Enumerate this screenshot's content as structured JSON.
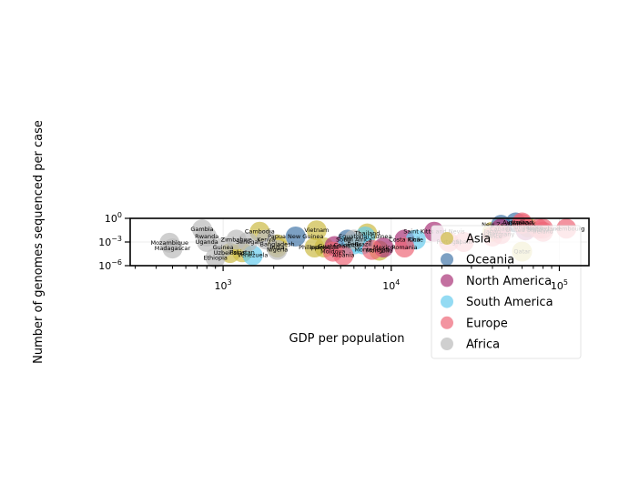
{
  "chart_data": {
    "type": "scatter",
    "title": "",
    "xlabel": "GDP per population",
    "ylabel": "Number of genomes sequenced per case",
    "xscale": "log",
    "yscale": "log",
    "xlim": [
      280,
      150000
    ],
    "ylim": [
      1e-06,
      1
    ],
    "xticks": [
      {
        "value": 1000,
        "base": "10",
        "exp": "3"
      },
      {
        "value": 10000,
        "base": "10",
        "exp": "4"
      },
      {
        "value": 100000,
        "base": "10",
        "exp": "5"
      }
    ],
    "yticks": [
      {
        "value": 1e-06,
        "base": "10",
        "exp": "−6"
      },
      {
        "value": 0.001,
        "base": "10",
        "exp": "−3"
      },
      {
        "value": 1,
        "base": "10",
        "exp": "0"
      }
    ],
    "grid": true,
    "legend_position": "right",
    "series": [
      {
        "name": "Asia",
        "color": "#ccbb44",
        "points": [
          {
            "label": "Cambodia",
            "x": 1650,
            "y": 0.02
          },
          {
            "label": "Vietnam",
            "x": 3600,
            "y": 0.03
          },
          {
            "label": "Pakistan",
            "x": 1300,
            "y": 5e-05
          },
          {
            "label": "Bangladesh",
            "x": 2100,
            "y": 0.0005
          },
          {
            "label": "Thailand",
            "x": 7200,
            "y": 0.012
          },
          {
            "label": "Mongolia",
            "x": 8500,
            "y": 8e-05
          },
          {
            "label": "Uzbekistan",
            "x": 1100,
            "y": 4e-05
          },
          {
            "label": "India",
            "x": 2100,
            "y": 0.0002
          },
          {
            "label": "Indonesia",
            "x": 4000,
            "y": 0.0002
          },
          {
            "label": "Philippines",
            "x": 3500,
            "y": 0.0002
          },
          {
            "label": "Japan",
            "x": 40000,
            "y": 0.02
          },
          {
            "label": "Qatar",
            "x": 60000,
            "y": 6e-05
          },
          {
            "label": "Singapore",
            "x": 65000,
            "y": 0.07
          }
        ]
      },
      {
        "name": "Oceania",
        "color": "#4477aa",
        "points": [
          {
            "label": "Papua New Guinea",
            "x": 2700,
            "y": 0.005
          },
          {
            "label": "Australia",
            "x": 55000,
            "y": 0.3
          },
          {
            "label": "New Zealand",
            "x": 45000,
            "y": 0.15
          },
          {
            "label": "Fiji",
            "x": 5500,
            "y": 0.002
          }
        ]
      },
      {
        "name": "North America",
        "color": "#aa3377",
        "points": [
          {
            "label": "Saint Kitts and Nevis",
            "x": 18000,
            "y": 0.02
          },
          {
            "label": "Guatemala",
            "x": 4600,
            "y": 0.0003
          },
          {
            "label": "Mexico",
            "x": 9000,
            "y": 0.0002
          },
          {
            "label": "Costa Rica",
            "x": 12000,
            "y": 0.002
          },
          {
            "label": "Canada",
            "x": 45000,
            "y": 0.05
          },
          {
            "label": "United States",
            "x": 63000,
            "y": 0.03
          }
        ]
      },
      {
        "name": "South America",
        "color": "#66ccee",
        "points": [
          {
            "label": "Venezuela",
            "x": 1500,
            "y": 2e-05
          },
          {
            "label": "Equatorial Guinea",
            "x": 7000,
            "y": 0.005
          },
          {
            "label": "Colombia",
            "x": 5500,
            "y": 0.0004
          },
          {
            "label": "Brazil",
            "x": 6800,
            "y": 0.0005
          },
          {
            "label": "Peru",
            "x": 6000,
            "y": 0.0005
          },
          {
            "label": "Chile",
            "x": 14000,
            "y": 0.002
          }
        ]
      },
      {
        "name": "Europe",
        "color": "#ee6677",
        "points": [
          {
            "label": "Albania",
            "x": 5200,
            "y": 2e-05
          },
          {
            "label": "Moldova",
            "x": 4500,
            "y": 6e-05
          },
          {
            "label": "Montenegro",
            "x": 7700,
            "y": 0.0001
          },
          {
            "label": "Romania",
            "x": 12000,
            "y": 0.0002
          },
          {
            "label": "Portugal",
            "x": 22000,
            "y": 0.001
          },
          {
            "label": "Ireland",
            "x": 80000,
            "y": 0.02
          },
          {
            "label": "Iceland",
            "x": 60000,
            "y": 0.3
          },
          {
            "label": "Denmark",
            "x": 60000,
            "y": 0.2
          },
          {
            "label": "Luxembourg",
            "x": 110000,
            "y": 0.05
          },
          {
            "label": "Switzerland",
            "x": 80000,
            "y": 0.05
          },
          {
            "label": "Germany",
            "x": 45000,
            "y": 0.01
          },
          {
            "label": "France",
            "x": 40000,
            "y": 0.005
          },
          {
            "label": "Spain",
            "x": 27000,
            "y": 0.001
          },
          {
            "label": "Norway",
            "x": 75000,
            "y": 0.05
          }
        ]
      },
      {
        "name": "Africa",
        "color": "#bbbbbb",
        "points": [
          {
            "label": "Gambia",
            "x": 750,
            "y": 0.04
          },
          {
            "label": "Mozambique",
            "x": 480,
            "y": 0.0008
          },
          {
            "label": "Madagascar",
            "x": 500,
            "y": 0.00015
          },
          {
            "label": "Ethiopia",
            "x": 900,
            "y": 1e-05
          },
          {
            "label": "Rwanda",
            "x": 800,
            "y": 0.005
          },
          {
            "label": "Zimbabwe",
            "x": 1200,
            "y": 0.002
          },
          {
            "label": "Senegal",
            "x": 1400,
            "y": 0.001
          },
          {
            "label": "Guinea",
            "x": 1000,
            "y": 0.0002
          },
          {
            "label": "Uganda",
            "x": 800,
            "y": 0.001
          },
          {
            "label": "Kenya",
            "x": 1800,
            "y": 0.002
          },
          {
            "label": "Nigeria",
            "x": 2100,
            "y": 0.0001
          },
          {
            "label": "South Africa",
            "x": 6000,
            "y": 0.002
          }
        ]
      }
    ]
  }
}
